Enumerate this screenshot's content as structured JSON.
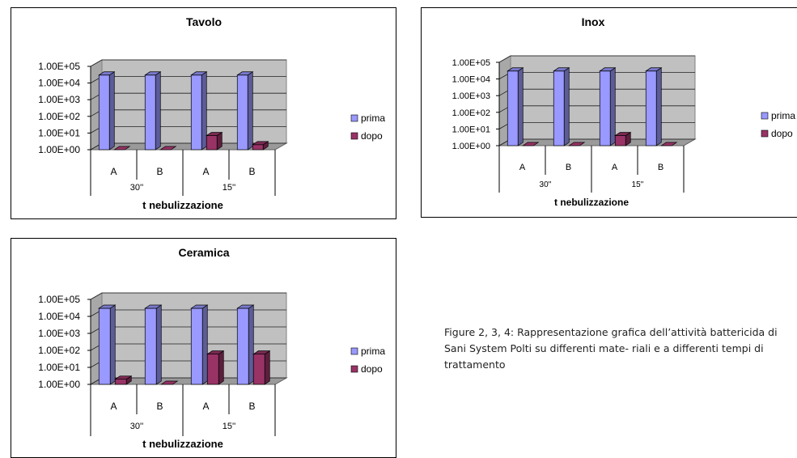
{
  "chart_data": [
    {
      "type": "bar",
      "title": "Tavolo",
      "yticks": [
        "1.00E+00",
        "1.00E+01",
        "1.00E+02",
        "1.00E+03",
        "1.00E+04",
        "1.00E+05"
      ],
      "ylim": [
        1,
        100000
      ],
      "yscale": "log",
      "categories": [
        "A",
        "B",
        "A",
        "B"
      ],
      "groups": [
        "30''",
        "15''"
      ],
      "xlabel": "t nebulizzazione",
      "series": [
        {
          "name": "prima",
          "color": "#9999ff",
          "values": [
            30000,
            30000,
            30000,
            30000
          ]
        },
        {
          "name": "dopo",
          "color": "#993366",
          "values": [
            1,
            1,
            7,
            2
          ]
        }
      ],
      "legend": "right"
    },
    {
      "type": "bar",
      "title": "Inox",
      "yticks": [
        "1.00E+00",
        "1.00E+01",
        "1.00E+02",
        "1.00E+03",
        "1.00E+04",
        "1.00E+05"
      ],
      "ylim": [
        1,
        100000
      ],
      "yscale": "log",
      "categories": [
        "A",
        "B",
        "A",
        "B"
      ],
      "groups": [
        "30''",
        "15''"
      ],
      "xlabel": "t nebulizzazione",
      "series": [
        {
          "name": "prima",
          "color": "#9999ff",
          "values": [
            30000,
            30000,
            30000,
            30000
          ]
        },
        {
          "name": "dopo",
          "color": "#993366",
          "values": [
            1,
            1,
            4,
            1
          ]
        }
      ],
      "legend": "right"
    },
    {
      "type": "bar",
      "title": "Ceramica",
      "yticks": [
        "1.00E+00",
        "1.00E+01",
        "1.00E+02",
        "1.00E+03",
        "1.00E+04",
        "1.00E+05"
      ],
      "ylim": [
        1,
        100000
      ],
      "yscale": "log",
      "categories": [
        "A",
        "B",
        "A",
        "B"
      ],
      "groups": [
        "30''",
        "15''"
      ],
      "xlabel": "t nebulizzazione",
      "series": [
        {
          "name": "prima",
          "color": "#9999ff",
          "values": [
            30000,
            30000,
            30000,
            30000
          ]
        },
        {
          "name": "dopo",
          "color": "#993366",
          "values": [
            2,
            1,
            60,
            60
          ]
        }
      ],
      "legend": "right"
    }
  ],
  "caption": "Figure 2, 3, 4: Rappresentazione grafica dell’attività battericida di Sani System Polti su differenti mate- riali  e a differenti tempi di trattamento"
}
